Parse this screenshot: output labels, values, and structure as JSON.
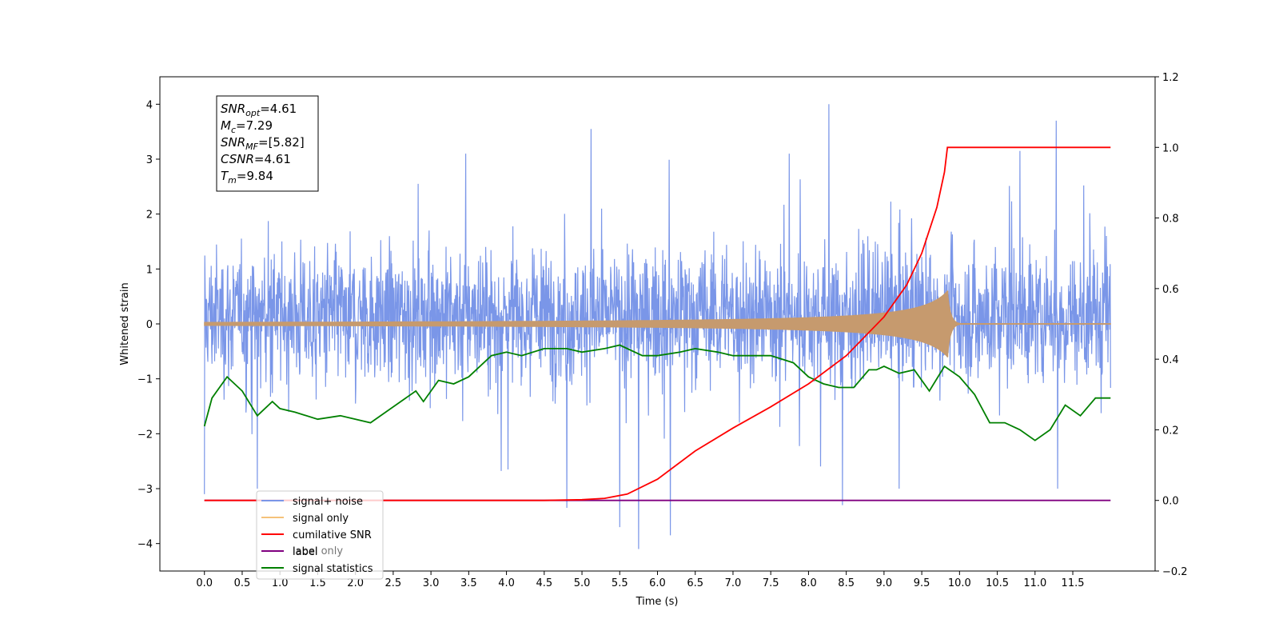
{
  "chart_data": {
    "type": "line",
    "xlabel": "Time (s)",
    "ylabel": "Whitened strain",
    "xlim": [
      -0.59,
      12.59
    ],
    "ylim": [
      -4.5,
      4.5
    ],
    "y2lim": [
      -0.2,
      1.2
    ],
    "grid": false,
    "legend_position": "lower-left",
    "x_ticks": [
      "0.0",
      "0.5",
      "1.0",
      "1.5",
      "2.0",
      "2.5",
      "3.0",
      "3.5",
      "4.0",
      "4.5",
      "5.0",
      "5.5",
      "6.0",
      "6.5",
      "7.0",
      "7.5",
      "8.0",
      "8.5",
      "9.0",
      "9.5",
      "10.0",
      "10.5",
      "11.0",
      "11.5"
    ],
    "y_ticks": [
      "4",
      "3",
      "2",
      "1",
      "0",
      "−1",
      "−2",
      "−3",
      "−4"
    ],
    "y2_ticks": [
      "1.2",
      "1.0",
      "0.8",
      "0.6",
      "0.4",
      "0.2",
      "0.0",
      "−0.2"
    ],
    "annotation": {
      "lines": [
        {
          "sym": "SNR",
          "sub": "opt",
          "val": "=4.61"
        },
        {
          "sym": "M",
          "sub": "c",
          "val": "=7.29"
        },
        {
          "sym": "SNR",
          "sub": "MF",
          "val": "=[5.82]"
        },
        {
          "sym": "CSNR",
          "sub": "",
          "val": "=4.61"
        },
        {
          "sym": "T",
          "sub": "m",
          "val": "=9.84"
        }
      ]
    },
    "series": [
      {
        "name": "signal+ noise",
        "color": "#7a96e8",
        "axis": "left",
        "kind": "noise",
        "y_range_typical": [
          -2.0,
          2.4
        ],
        "y_peaks": [
          [
            0.0,
            -3.1
          ],
          [
            0.7,
            -3.0
          ],
          [
            4.8,
            -3.35
          ],
          [
            5.12,
            3.55
          ],
          [
            5.5,
            -3.7
          ],
          [
            5.75,
            -4.1
          ],
          [
            6.17,
            -3.85
          ],
          [
            8.27,
            4.0
          ],
          [
            8.45,
            -3.3
          ],
          [
            9.2,
            -3.0
          ],
          [
            10.8,
            3.15
          ],
          [
            11.28,
            3.7
          ],
          [
            11.3,
            -3.0
          ]
        ]
      },
      {
        "name": "signal only",
        "color": "#f5c27a",
        "axis": "left",
        "kind": "chirp",
        "merger_time": 9.84,
        "peak_amplitude": 0.6
      },
      {
        "name": "cumilative SNR",
        "color": "#ff0000",
        "axis": "right",
        "x": [
          0.0,
          4.5,
          5.0,
          5.3,
          5.6,
          6.0,
          6.5,
          7.0,
          7.5,
          8.0,
          8.5,
          9.0,
          9.3,
          9.5,
          9.7,
          9.8,
          9.84,
          11.5,
          12.0
        ],
        "y": [
          0.0,
          0.0,
          0.002,
          0.006,
          0.018,
          0.06,
          0.14,
          0.205,
          0.265,
          0.33,
          0.41,
          0.52,
          0.61,
          0.7,
          0.83,
          0.93,
          1.0,
          1.0,
          1.0
        ]
      },
      {
        "name": "label",
        "color": "#800080",
        "axis": "right",
        "x": [
          0.0,
          12.0
        ],
        "y": [
          0.0,
          0.0
        ]
      },
      {
        "name": "label only",
        "color": "#ffc0cb",
        "axis": "right",
        "hidden_in_plot": true
      },
      {
        "name": "signal statistics",
        "color": "#008000",
        "axis": "right",
        "x": [
          0.0,
          0.1,
          0.2,
          0.3,
          0.5,
          0.7,
          0.9,
          1.0,
          1.2,
          1.5,
          1.8,
          2.2,
          2.4,
          2.6,
          2.8,
          2.9,
          3.1,
          3.3,
          3.5,
          3.8,
          4.0,
          4.2,
          4.5,
          4.8,
          5.0,
          5.3,
          5.5,
          5.8,
          6.0,
          6.3,
          6.5,
          6.8,
          7.0,
          7.2,
          7.5,
          7.8,
          8.0,
          8.2,
          8.4,
          8.6,
          8.8,
          8.9,
          9.0,
          9.2,
          9.4,
          9.6,
          9.8,
          10.0,
          10.2,
          10.4,
          10.6,
          10.8,
          11.0,
          11.2,
          11.4,
          11.6,
          11.8,
          12.0
        ],
        "y": [
          0.21,
          0.29,
          0.32,
          0.35,
          0.31,
          0.24,
          0.28,
          0.26,
          0.25,
          0.23,
          0.24,
          0.22,
          0.25,
          0.28,
          0.31,
          0.28,
          0.34,
          0.33,
          0.35,
          0.41,
          0.42,
          0.41,
          0.43,
          0.43,
          0.42,
          0.43,
          0.44,
          0.41,
          0.41,
          0.42,
          0.43,
          0.42,
          0.41,
          0.41,
          0.41,
          0.39,
          0.35,
          0.33,
          0.32,
          0.32,
          0.37,
          0.37,
          0.38,
          0.36,
          0.37,
          0.31,
          0.38,
          0.35,
          0.3,
          0.22,
          0.22,
          0.2,
          0.17,
          0.2,
          0.27,
          0.24,
          0.29,
          0.29
        ]
      }
    ]
  }
}
